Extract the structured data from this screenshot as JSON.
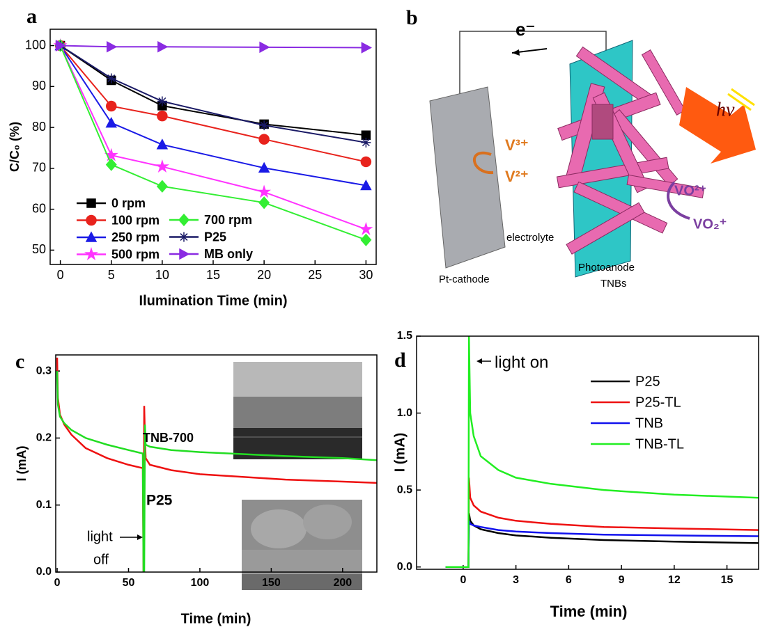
{
  "chart_data": [
    {
      "type": "line",
      "label": "a",
      "xlabel": "Ilumination Time (min)",
      "ylabel": "C/C₀ (%)",
      "x": [
        0,
        5,
        10,
        20,
        30
      ],
      "xlim": [
        -1,
        31
      ],
      "xticks": [
        0,
        5,
        10,
        15,
        20,
        25,
        30
      ],
      "ylim": [
        46.5,
        104
      ],
      "yticks": [
        50,
        60,
        70,
        80,
        90,
        100
      ],
      "legend": true,
      "series": [
        {
          "name": "0 rpm",
          "color": "#000000",
          "marker": "square",
          "values": [
            100,
            91.5,
            85.3,
            80.8,
            78.1
          ]
        },
        {
          "name": "100 rpm",
          "color": "#e8231d",
          "marker": "circle",
          "values": [
            100,
            85.2,
            82.8,
            77.1,
            71.6
          ]
        },
        {
          "name": "250 rpm",
          "color": "#1a1ae6",
          "marker": "triangle",
          "values": [
            100,
            81.1,
            75.8,
            70.1,
            65.8
          ]
        },
        {
          "name": "500 rpm",
          "color": "#ff33ff",
          "marker": "star",
          "values": [
            100,
            73.2,
            70.4,
            64.2,
            55.1
          ]
        },
        {
          "name": "700 rpm",
          "color": "#33ee33",
          "marker": "diamond",
          "values": [
            100,
            70.9,
            65.6,
            61.6,
            52.5
          ]
        },
        {
          "name": "P25",
          "color": "#1a1a66",
          "marker": "asterisk",
          "values": [
            100,
            92,
            86.4,
            80.5,
            76.3
          ]
        },
        {
          "name": "MB only",
          "color": "#8a2be2",
          "marker": "triangle-right",
          "values": [
            100,
            99.7,
            99.7,
            99.6,
            99.5
          ]
        }
      ]
    },
    {
      "type": "line",
      "label": "c",
      "xlabel": "Time (min)",
      "ylabel": "I (mA)",
      "x": [
        0,
        0.5,
        2,
        5,
        10,
        20,
        35,
        50,
        60,
        60.5,
        61,
        61.5,
        62,
        65,
        80,
        100,
        130,
        160,
        200,
        224
      ],
      "xlim": [
        -1,
        224
      ],
      "xticks": [
        0,
        50,
        100,
        150,
        200
      ],
      "ylim": [
        0,
        0.324
      ],
      "yticks": [
        {
          "value": 0,
          "label": "0.0"
        },
        0.1,
        0.2,
        0.3
      ],
      "legend": false,
      "annotations": [
        "TNB-700",
        "P25",
        "light",
        "off"
      ],
      "series": [
        {
          "color": "#ee1111",
          "marker": "none",
          "values": [
            0.32,
            0.26,
            0.235,
            0.22,
            0.205,
            0.185,
            0.17,
            0.16,
            0.155,
            0,
            0.248,
            0.2,
            0.17,
            0.16,
            0.152,
            0.146,
            0.142,
            0.138,
            0.135,
            0.133
          ]
        },
        {
          "color": "#22dd22",
          "marker": "none",
          "values": [
            0.3,
            0.25,
            0.232,
            0.222,
            0.212,
            0.2,
            0.19,
            0.182,
            0.177,
            0,
            0,
            0.22,
            0.19,
            0.187,
            0.182,
            0.179,
            0.176,
            0.173,
            0.17,
            0.167
          ]
        }
      ]
    },
    {
      "type": "line",
      "label": "d",
      "xlabel": "Time (min)",
      "ylabel": "I (mA)",
      "x": [
        -1,
        0.3,
        0.33,
        0.4,
        0.6,
        1,
        2,
        3,
        5,
        8,
        12,
        16.8
      ],
      "xlim": [
        -2.65,
        16.8
      ],
      "xticks": [
        0,
        3,
        6,
        9,
        12,
        15
      ],
      "ylim": [
        -0.015,
        1.5
      ],
      "yticks": [
        {
          "value": 0,
          "label": "0.0"
        },
        0.5,
        {
          "value": 1,
          "label": "1.0"
        },
        1.5
      ],
      "legend": true,
      "annotations": [
        "light on"
      ],
      "series": [
        {
          "name": "P25",
          "color": "#000000",
          "marker": "none",
          "values": [
            0,
            0,
            0.35,
            0.3,
            0.27,
            0.245,
            0.22,
            0.205,
            0.19,
            0.175,
            0.165,
            0.155
          ]
        },
        {
          "name": "P25-TL",
          "color": "#ee1111",
          "marker": "none",
          "values": [
            0,
            0,
            0.58,
            0.45,
            0.4,
            0.36,
            0.32,
            0.3,
            0.28,
            0.26,
            0.25,
            0.24
          ]
        },
        {
          "name": "TNB",
          "color": "#1111ee",
          "marker": "none",
          "values": [
            0,
            0,
            0.3,
            0.28,
            0.27,
            0.26,
            0.24,
            0.23,
            0.22,
            0.21,
            0.205,
            0.2
          ]
        },
        {
          "name": "TNB-TL",
          "color": "#22ee22",
          "marker": "none",
          "values": [
            0,
            0,
            1.5,
            1.0,
            0.85,
            0.72,
            0.63,
            0.58,
            0.54,
            0.5,
            0.47,
            0.45
          ]
        }
      ]
    }
  ],
  "diagram": {
    "label": "b",
    "electron": "e⁻",
    "cathode_couple": [
      "V³⁺",
      "V²⁺"
    ],
    "anode_couple": [
      "VO²⁺",
      "VO₂⁺"
    ],
    "electrolyte": "electrolyte",
    "cathode": "Pt-cathode",
    "anode": [
      "Photoanode",
      "TNBs"
    ],
    "light": "hν"
  }
}
